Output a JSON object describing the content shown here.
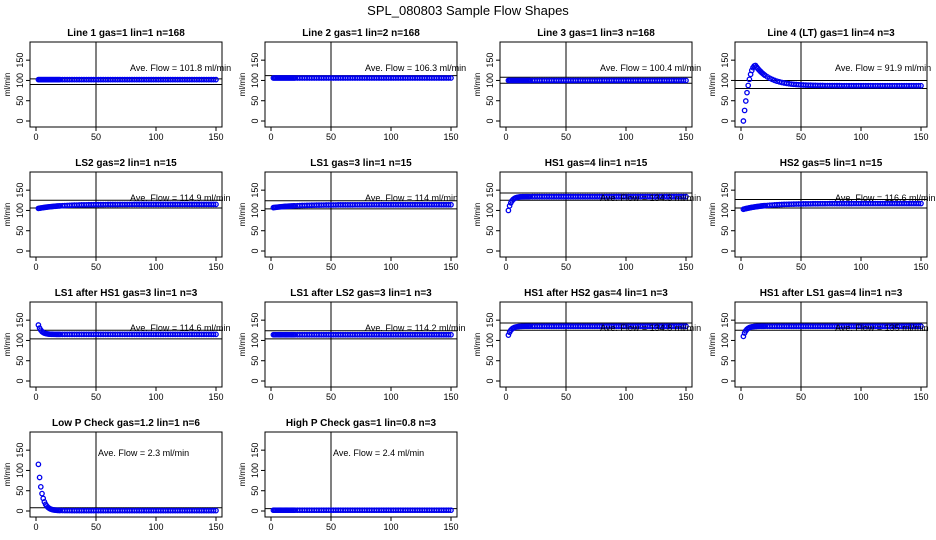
{
  "figure": {
    "title": "SPL_080803  Sample Flow Shapes"
  },
  "chart_data": [
    {
      "type": "scatter",
      "title": "Line 1 gas=1 lin=1 n=168",
      "ylabel": "ml/min",
      "xlim": [
        0,
        150
      ],
      "ylim": [
        0,
        180
      ],
      "x_ticks": [
        0,
        50,
        100,
        150
      ],
      "y_ticks": [
        0,
        50,
        100,
        150
      ],
      "vline_x": 50,
      "hlines": [
        104,
        90
      ],
      "annotation": "Ave. Flow =  101.8  ml/min",
      "shape": "flat",
      "level": 102
    },
    {
      "type": "scatter",
      "title": "Line 2 gas=1 lin=2 n=168",
      "ylabel": "ml/min",
      "xlim": [
        0,
        150
      ],
      "ylim": [
        0,
        180
      ],
      "x_ticks": [
        0,
        50,
        100,
        150
      ],
      "y_ticks": [
        0,
        50,
        100,
        150
      ],
      "vline_x": 50,
      "hlines": [
        112
      ],
      "annotation": "Ave. Flow =  106.3  ml/min",
      "shape": "flat",
      "level": 106
    },
    {
      "type": "scatter",
      "title": "Line 3 gas=1 lin=3 n=168",
      "ylabel": "ml/min",
      "xlim": [
        0,
        150
      ],
      "ylim": [
        0,
        180
      ],
      "x_ticks": [
        0,
        50,
        100,
        150
      ],
      "y_ticks": [
        0,
        50,
        100,
        150
      ],
      "vline_x": 50,
      "hlines": [
        108,
        93
      ],
      "annotation": "Ave. Flow =  100.4  ml/min",
      "shape": "flat",
      "level": 100
    },
    {
      "type": "scatter",
      "title": "Line 4 (LT) gas=1 lin=4 n=3",
      "ylabel": "ml/min",
      "xlim": [
        0,
        150
      ],
      "ylim": [
        0,
        180
      ],
      "x_ticks": [
        0,
        50,
        100,
        150
      ],
      "y_ticks": [
        0,
        50,
        100,
        150
      ],
      "vline_x": 50,
      "hlines": [
        100,
        80
      ],
      "annotation": "Ave. Flow =  91.9  ml/min",
      "shape": "rise_peak",
      "start": 0,
      "peak": 137,
      "level": 87
    },
    {
      "type": "scatter",
      "title": "LS2 gas=2 lin=1 n=15",
      "ylabel": "ml/min",
      "xlim": [
        0,
        150
      ],
      "ylim": [
        0,
        180
      ],
      "x_ticks": [
        0,
        50,
        100,
        150
      ],
      "y_ticks": [
        0,
        50,
        100,
        150
      ],
      "vline_x": 50,
      "hlines": [
        125,
        106
      ],
      "annotation": "Ave. Flow =  114.9  ml/min",
      "shape": "ramp",
      "start": 105,
      "level": 115
    },
    {
      "type": "scatter",
      "title": "LS1 gas=3 lin=1 n=15",
      "ylabel": "ml/min",
      "xlim": [
        0,
        150
      ],
      "ylim": [
        0,
        180
      ],
      "x_ticks": [
        0,
        50,
        100,
        150
      ],
      "y_ticks": [
        0,
        50,
        100,
        150
      ],
      "vline_x": 50,
      "hlines": [
        124,
        104
      ],
      "annotation": "Ave. Flow =  114  ml/min",
      "shape": "ramp",
      "start": 107,
      "level": 114
    },
    {
      "type": "scatter",
      "title": "HS1 gas=4 lin=1 n=15",
      "ylabel": "ml/min",
      "xlim": [
        0,
        150
      ],
      "ylim": [
        0,
        180
      ],
      "x_ticks": [
        0,
        50,
        100,
        150
      ],
      "y_ticks": [
        0,
        50,
        100,
        150
      ],
      "vline_x": 50,
      "hlines": [
        143,
        125
      ],
      "annotation": "Ave. Flow =  134.3  ml/min",
      "shape": "rise",
      "start": 100,
      "level": 134
    },
    {
      "type": "scatter",
      "title": "HS2 gas=5 lin=1 n=15",
      "ylabel": "ml/min",
      "xlim": [
        0,
        150
      ],
      "ylim": [
        0,
        180
      ],
      "x_ticks": [
        0,
        50,
        100,
        150
      ],
      "y_ticks": [
        0,
        50,
        100,
        150
      ],
      "vline_x": 50,
      "hlines": [
        127,
        106
      ],
      "annotation": "Ave. Flow =  116.6  ml/min",
      "shape": "ramp",
      "start": 103,
      "level": 117
    },
    {
      "type": "scatter",
      "title": "LS1 after HS1 gas=3 lin=1 n=3",
      "ylabel": "ml/min",
      "xlim": [
        0,
        150
      ],
      "ylim": [
        0,
        180
      ],
      "x_ticks": [
        0,
        50,
        100,
        150
      ],
      "y_ticks": [
        0,
        50,
        100,
        150
      ],
      "vline_x": 50,
      "hlines": [
        125,
        104
      ],
      "annotation": "Ave. Flow =  114.6  ml/min",
      "shape": "fall",
      "start": 138,
      "level": 115
    },
    {
      "type": "scatter",
      "title": "LS1 after LS2 gas=3 lin=1 n=3",
      "ylabel": "ml/min",
      "xlim": [
        0,
        150
      ],
      "ylim": [
        0,
        180
      ],
      "x_ticks": [
        0,
        50,
        100,
        150
      ],
      "y_ticks": [
        0,
        50,
        100,
        150
      ],
      "vline_x": 50,
      "hlines": [
        124,
        104
      ],
      "annotation": "Ave. Flow =  114.2  ml/min",
      "shape": "flat",
      "level": 114
    },
    {
      "type": "scatter",
      "title": "HS1 after HS2 gas=4 lin=1 n=3",
      "ylabel": "ml/min",
      "xlim": [
        0,
        150
      ],
      "ylim": [
        0,
        180
      ],
      "x_ticks": [
        0,
        50,
        100,
        150
      ],
      "y_ticks": [
        0,
        50,
        100,
        150
      ],
      "vline_x": 50,
      "hlines": [
        143,
        125
      ],
      "annotation": "Ave. Flow =  134.8  ml/min",
      "shape": "rise",
      "start": 113,
      "level": 135
    },
    {
      "type": "scatter",
      "title": "HS1 after LS1 gas=4 lin=1 n=3",
      "ylabel": "ml/min",
      "xlim": [
        0,
        150
      ],
      "ylim": [
        0,
        180
      ],
      "x_ticks": [
        0,
        50,
        100,
        150
      ],
      "y_ticks": [
        0,
        50,
        100,
        150
      ],
      "vline_x": 50,
      "hlines": [
        143,
        125
      ],
      "annotation": "Ave. Flow =  135  ml/min",
      "shape": "rise",
      "start": 110,
      "level": 135
    },
    {
      "type": "scatter",
      "title": "Low P Check gas=1.2 lin=1 n=6",
      "ylabel": "ml/min",
      "xlim": [
        0,
        150
      ],
      "ylim": [
        0,
        180
      ],
      "x_ticks": [
        0,
        50,
        100,
        150
      ],
      "y_ticks": [
        0,
        50,
        100,
        150
      ],
      "vline_x": 50,
      "hlines": [
        8
      ],
      "annotation": "Ave. Flow =  2.3  ml/min",
      "shape": "decay",
      "start": 115,
      "level": 1
    },
    {
      "type": "scatter",
      "title": "High P Check gas=1 lin=0.8 n=3",
      "ylabel": "ml/min",
      "xlim": [
        0,
        150
      ],
      "ylim": [
        0,
        180
      ],
      "x_ticks": [
        0,
        50,
        100,
        150
      ],
      "y_ticks": [
        0,
        50,
        100,
        150
      ],
      "vline_x": 50,
      "hlines": [
        6
      ],
      "annotation": "Ave. Flow =  2.4  ml/min",
      "shape": "flat",
      "level": 2
    }
  ],
  "colors": {
    "points": "#0000ee",
    "axes": "#000000",
    "background": "#ffffff"
  }
}
